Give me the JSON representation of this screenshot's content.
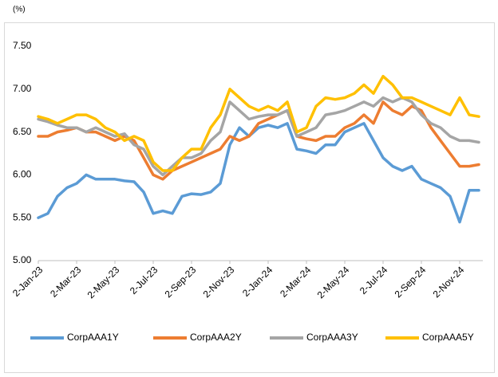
{
  "chart_data": {
    "type": "line",
    "y_unit": "(%)",
    "categories": [
      "2-Jan-23",
      null,
      null,
      null,
      "2-Mar-23",
      null,
      null,
      null,
      "2-May-23",
      null,
      null,
      null,
      "2-Jul-23",
      null,
      null,
      null,
      "2-Sep-23",
      null,
      null,
      null,
      "2-Nov-23",
      null,
      null,
      null,
      "2-Jan-24",
      null,
      null,
      null,
      "2-Mar-24",
      null,
      null,
      null,
      "2-May-24",
      null,
      null,
      null,
      "2-Jul-24",
      null,
      null,
      null,
      "2-Sep-24",
      null,
      null,
      null,
      "2-Nov-24",
      null,
      null
    ],
    "series": [
      {
        "name": "CorpAAA1Y",
        "color": "#5b9bd5",
        "values": [
          5.5,
          5.55,
          5.75,
          5.85,
          5.9,
          6.0,
          5.95,
          5.95,
          5.95,
          5.93,
          5.92,
          5.8,
          5.55,
          5.58,
          5.55,
          5.75,
          5.78,
          5.77,
          5.8,
          5.9,
          6.35,
          6.55,
          6.45,
          6.55,
          6.58,
          6.55,
          6.6,
          6.3,
          6.28,
          6.25,
          6.35,
          6.35,
          6.5,
          6.55,
          6.6,
          6.4,
          6.2,
          6.1,
          6.05,
          6.1,
          5.95,
          5.9,
          5.85,
          5.75,
          5.45,
          5.82,
          5.82
        ]
      },
      {
        "name": "CorpAAA2Y",
        "color": "#ed7d31",
        "values": [
          6.45,
          6.45,
          6.5,
          6.52,
          6.55,
          6.5,
          6.5,
          6.45,
          6.4,
          6.45,
          6.4,
          6.2,
          6.0,
          5.95,
          6.05,
          6.1,
          6.15,
          6.2,
          6.25,
          6.3,
          6.45,
          6.4,
          6.45,
          6.6,
          6.65,
          6.7,
          6.75,
          6.45,
          6.42,
          6.4,
          6.45,
          6.45,
          6.55,
          6.6,
          6.7,
          6.6,
          6.85,
          6.75,
          6.7,
          6.8,
          6.75,
          6.55,
          6.4,
          6.25,
          6.1,
          6.1,
          6.12
        ]
      },
      {
        "name": "CorpAAA3Y",
        "color": "#a5a5a5",
        "values": [
          6.65,
          6.62,
          6.58,
          6.55,
          6.55,
          6.5,
          6.55,
          6.5,
          6.45,
          6.48,
          6.35,
          6.3,
          6.1,
          6.0,
          6.1,
          6.2,
          6.2,
          6.25,
          6.4,
          6.5,
          6.85,
          6.75,
          6.65,
          6.68,
          6.7,
          6.7,
          6.75,
          6.45,
          6.5,
          6.55,
          6.7,
          6.72,
          6.75,
          6.8,
          6.85,
          6.8,
          6.9,
          6.85,
          6.9,
          6.85,
          6.7,
          6.6,
          6.55,
          6.45,
          6.4,
          6.4,
          6.38
        ]
      },
      {
        "name": "CorpAAA5Y",
        "color": "#ffc000",
        "values": [
          6.68,
          6.65,
          6.6,
          6.65,
          6.7,
          6.7,
          6.65,
          6.55,
          6.5,
          6.4,
          6.45,
          6.4,
          6.15,
          6.05,
          6.05,
          6.2,
          6.3,
          6.3,
          6.55,
          6.7,
          7.0,
          6.9,
          6.8,
          6.75,
          6.8,
          6.75,
          6.85,
          6.5,
          6.55,
          6.8,
          6.9,
          6.88,
          6.9,
          6.95,
          7.05,
          6.95,
          7.15,
          7.05,
          6.9,
          6.9,
          6.85,
          6.8,
          6.75,
          6.7,
          6.9,
          6.7,
          6.68
        ]
      }
    ],
    "ylim": [
      5,
      7.5
    ],
    "yticks": [
      {
        "value": 5,
        "label": "5.00"
      },
      {
        "value": 5.5,
        "label": "5.50"
      },
      {
        "value": 6,
        "label": "6.00"
      },
      {
        "value": 6.5,
        "label": "6.50"
      },
      {
        "value": 7,
        "label": "7.00"
      },
      {
        "value": 7.5,
        "label": "7.50"
      }
    ],
    "grid": false,
    "legend": "bottom"
  }
}
